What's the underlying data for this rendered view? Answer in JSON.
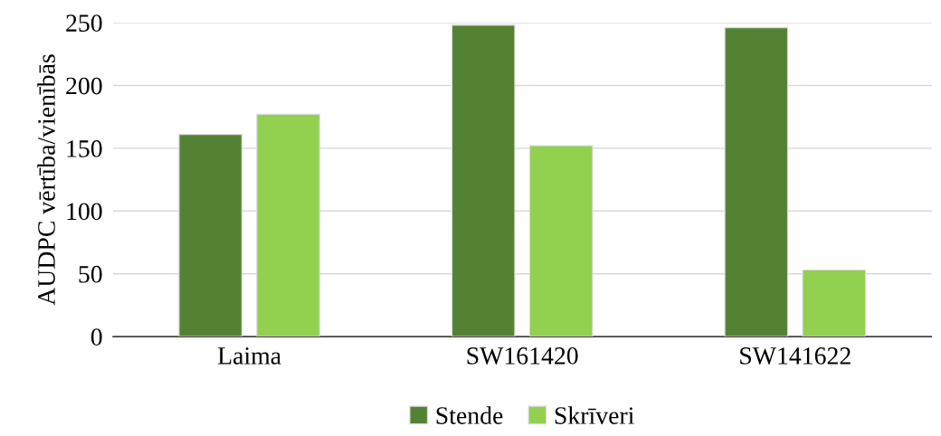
{
  "chart_data": {
    "type": "bar",
    "ylabel": "AUDPC vērtība/vienībās",
    "categories": [
      "Laima",
      "SW161420",
      "SW141622"
    ],
    "series": [
      {
        "name": "Stende",
        "color": "#548235",
        "values": [
          161,
          248,
          246
        ]
      },
      {
        "name": "Skrīveri",
        "color": "#92d050",
        "values": [
          177,
          152,
          53
        ]
      }
    ],
    "ylim": [
      0,
      250
    ],
    "yticks": [
      0,
      50,
      100,
      150,
      200,
      250
    ],
    "grid": "y",
    "legend": "bottom"
  }
}
